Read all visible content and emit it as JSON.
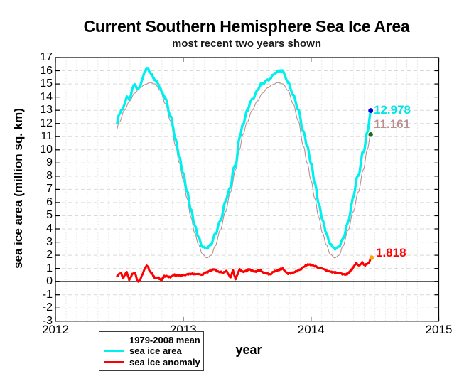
{
  "chart_data": {
    "type": "line",
    "title": "Current Southern Hemisphere Sea Ice Area",
    "subtitle": "most recent two years shown",
    "xlabel": "year",
    "ylabel": "sea ice area (million sq. km)",
    "xlim": [
      2012,
      2015
    ],
    "ylim": [
      -3,
      17
    ],
    "x_ticks": [
      2012,
      2013,
      2014,
      2015
    ],
    "y_ticks": [
      17,
      16,
      15,
      14,
      13,
      12,
      11,
      10,
      9,
      8,
      7,
      6,
      5,
      4,
      3,
      2,
      1,
      0,
      -1,
      -2,
      -3
    ],
    "grid": {
      "horizontal_style": "dashed",
      "vertical_style": "dotted",
      "vertical_interval": "monthly",
      "h_color": "#d9d9d9",
      "v_color": "#e3e3e3"
    },
    "zero_line": {
      "value": 0,
      "color": "#4a4a4a"
    },
    "frame_color": "#000000",
    "data_time_range": [
      2012.483,
      2014.467
    ],
    "legend_entries": [
      "1979-2008 mean",
      "sea ice area",
      "sea ice anomaly"
    ],
    "series": [
      {
        "name": "1979-2008 mean",
        "color": "#BC8F8F",
        "line_width": 1.1,
        "current_value": 11.161,
        "end_marker_color": "#1a6b1a",
        "climatology_year_fraction": [
          0.0,
          0.03,
          0.06,
          0.09,
          0.12,
          0.15,
          0.185,
          0.22,
          0.25,
          0.29,
          0.33,
          0.37,
          0.41,
          0.44,
          0.467,
          0.5,
          0.54,
          0.58,
          0.62,
          0.66,
          0.7,
          0.74,
          0.78,
          0.82,
          0.86,
          0.9,
          0.94,
          0.97,
          1.0
        ],
        "climatology_values": [
          7.7,
          6.3,
          4.9,
          3.7,
          2.8,
          2.1,
          1.8,
          2.0,
          2.7,
          3.9,
          5.3,
          6.8,
          8.5,
          10.0,
          11.16,
          12.1,
          13.0,
          13.7,
          14.3,
          14.7,
          14.95,
          15.1,
          15.0,
          14.5,
          13.5,
          12.2,
          10.3,
          9.0,
          7.7
        ],
        "seasonal_min": 1.8,
        "seasonal_max": 15.1
      },
      {
        "name": "sea ice area",
        "color": "#00F0F0",
        "line_width": 3.4,
        "current_value": 12.978,
        "end_marker_color": "#0000DD",
        "derivation": "mean_plus_anomaly",
        "observed_max_2012": 16.2,
        "observed_min_2013": 2.3,
        "observed_max_2013": 16.1,
        "observed_min_2014": 2.6
      },
      {
        "name": "sea ice anomaly",
        "color": "#FF0000",
        "line_width": 3.0,
        "current_value": 1.818,
        "end_marker_color": "#FFA500",
        "t": [
          2012.483,
          2012.512,
          2012.528,
          2012.556,
          2012.578,
          2012.6,
          2012.622,
          2012.644,
          2012.661,
          2012.689,
          2012.717,
          2012.733,
          2012.756,
          2012.778,
          2012.806,
          2012.828,
          2012.85,
          2012.9,
          2012.93,
          2012.98,
          2013.04,
          2013.09,
          2013.15,
          2013.21,
          2013.24,
          2013.27,
          2013.31,
          2013.34,
          2013.37,
          2013.39,
          2013.41,
          2013.44,
          2013.47,
          2013.52,
          2013.565,
          2013.595,
          2013.633,
          2013.68,
          2013.706,
          2013.778,
          2013.817,
          2013.87,
          2013.92,
          2013.967,
          2014.01,
          2014.065,
          2014.09,
          2014.133,
          2014.178,
          2014.222,
          2014.26,
          2014.289,
          2014.317,
          2014.356,
          2014.372,
          2014.4,
          2014.417,
          2014.439,
          2014.456,
          2014.467
        ],
        "values": [
          0.42,
          0.69,
          0.23,
          0.77,
          0.15,
          0.55,
          0.69,
          0.02,
          0.05,
          0.77,
          1.26,
          0.9,
          0.6,
          0.25,
          0.32,
          0.09,
          0.42,
          0.35,
          0.51,
          0.46,
          0.57,
          0.6,
          0.55,
          0.82,
          0.93,
          0.78,
          0.68,
          0.82,
          0.33,
          0.87,
          0.14,
          0.95,
          0.75,
          0.95,
          0.75,
          0.9,
          0.65,
          0.55,
          0.75,
          1.0,
          0.6,
          0.7,
          0.95,
          1.3,
          1.25,
          1.05,
          0.95,
          0.8,
          0.7,
          0.65,
          0.55,
          0.6,
          0.9,
          1.4,
          1.2,
          1.45,
          1.2,
          1.35,
          1.5,
          1.818
        ]
      }
    ]
  }
}
